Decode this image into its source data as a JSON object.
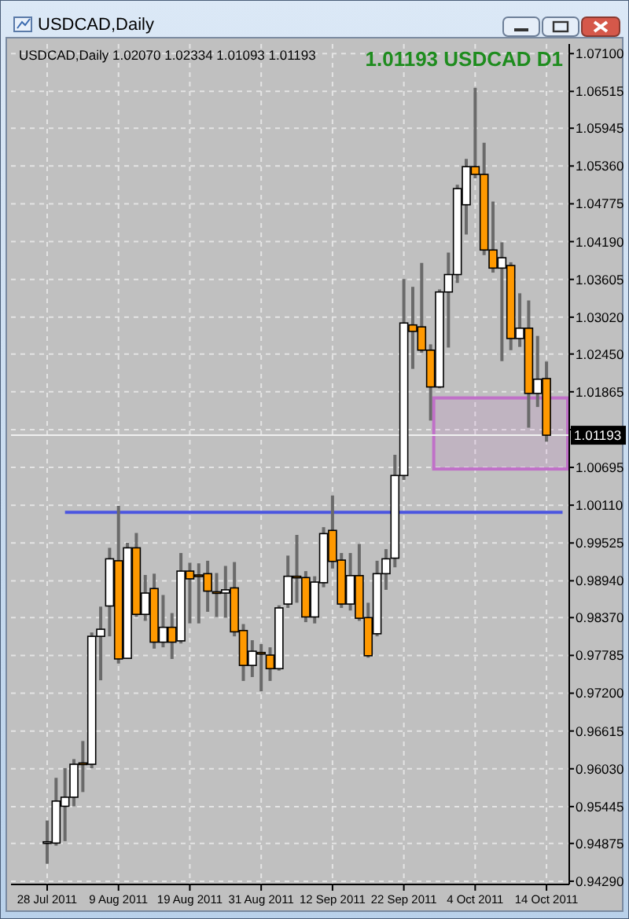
{
  "chart_data": {
    "type": "candlestick",
    "title": "USDCAD,Daily",
    "annotations": [
      "USDCAD,Daily 1.02070 1.02334 1.01093 1.01193",
      "1.01193 USDCAD D1"
    ],
    "categories": [
      "28 Jul 2011",
      null,
      null,
      null,
      null,
      null,
      null,
      null,
      "9 Aug 2011",
      null,
      null,
      null,
      null,
      null,
      null,
      null,
      "19 Aug 2011",
      null,
      null,
      null,
      null,
      null,
      null,
      null,
      "31 Aug 2011",
      null,
      null,
      null,
      null,
      null,
      null,
      null,
      "12 Sep 2011",
      null,
      null,
      null,
      null,
      null,
      null,
      null,
      "22 Sep 2011",
      null,
      null,
      null,
      null,
      null,
      null,
      null,
      "4 Oct 2011",
      null,
      null,
      null,
      null,
      null,
      null,
      null,
      "14 Oct 2011"
    ],
    "ohlc": [
      [
        0.9489,
        0.9523,
        0.9456,
        0.949
      ],
      [
        0.9488,
        0.9589,
        0.9484,
        0.9553
      ],
      [
        0.9545,
        0.9604,
        0.9491,
        0.9559
      ],
      [
        0.9559,
        0.9618,
        0.9545,
        0.961
      ],
      [
        0.9612,
        0.9646,
        0.9567,
        0.9611
      ],
      [
        0.961,
        0.9814,
        0.9604,
        0.9808
      ],
      [
        0.9808,
        0.9854,
        0.974,
        0.9819
      ],
      [
        0.9855,
        0.9945,
        0.9808,
        0.9928
      ],
      [
        0.9925,
        1.001,
        0.9766,
        0.9773
      ],
      [
        0.9774,
        0.9953,
        0.9773,
        0.9945
      ],
      [
        0.9945,
        0.9968,
        0.9838,
        0.9842
      ],
      [
        0.9842,
        0.9903,
        0.9832,
        0.9875
      ],
      [
        0.9882,
        0.9905,
        0.9789,
        0.9799
      ],
      [
        0.9799,
        0.9872,
        0.9791,
        0.9822
      ],
      [
        0.9822,
        0.9844,
        0.9773,
        0.9799
      ],
      [
        0.9801,
        0.9937,
        0.9797,
        0.9909
      ],
      [
        0.9909,
        0.9922,
        0.9828,
        0.9897
      ],
      [
        0.9903,
        0.9921,
        0.9828,
        0.9902
      ],
      [
        0.9905,
        0.9925,
        0.9846,
        0.9878
      ],
      [
        0.9877,
        0.9906,
        0.9838,
        0.9875
      ],
      [
        0.9875,
        0.9917,
        0.9837,
        0.988
      ],
      [
        0.9883,
        0.9923,
        0.9808,
        0.9815
      ],
      [
        0.9817,
        0.9827,
        0.9739,
        0.9763
      ],
      [
        0.9763,
        0.9802,
        0.9745,
        0.9785
      ],
      [
        0.9783,
        0.9796,
        0.9723,
        0.9781
      ],
      [
        0.9779,
        0.9791,
        0.9739,
        0.9758
      ],
      [
        0.9758,
        0.9856,
        0.9755,
        0.9852
      ],
      [
        0.9858,
        0.9933,
        0.9852,
        0.9901
      ],
      [
        0.9901,
        0.9965,
        0.986,
        0.9899
      ],
      [
        0.9899,
        0.9909,
        0.983,
        0.9838
      ],
      [
        0.9838,
        0.9901,
        0.9828,
        0.9892
      ],
      [
        0.9891,
        0.9977,
        0.9884,
        0.9967
      ],
      [
        0.9972,
        1.0026,
        0.9913,
        0.9924
      ],
      [
        0.9926,
        0.9937,
        0.9852,
        0.9858
      ],
      [
        0.9858,
        0.9937,
        0.9848,
        0.9902
      ],
      [
        0.9902,
        0.9951,
        0.9832,
        0.9836
      ],
      [
        0.9837,
        0.986,
        0.9775,
        0.9778
      ],
      [
        0.9812,
        0.9925,
        0.9808,
        0.9905
      ],
      [
        0.9905,
        0.9943,
        0.988,
        0.9928
      ],
      [
        0.9929,
        1.0089,
        0.9915,
        1.0057
      ],
      [
        1.0057,
        1.0361,
        1.005,
        1.0293
      ],
      [
        1.029,
        1.0349,
        1.0222,
        1.028
      ],
      [
        1.0287,
        1.0386,
        1.0247,
        1.0251
      ],
      [
        1.0251,
        1.026,
        1.0142,
        1.0194
      ],
      [
        1.0194,
        1.0345,
        1.0192,
        1.0341
      ],
      [
        1.0341,
        1.0402,
        1.0255,
        1.0368
      ],
      [
        1.0368,
        1.0507,
        1.0355,
        1.0501
      ],
      [
        1.0476,
        1.0547,
        1.043,
        1.0535
      ],
      [
        1.0535,
        1.0657,
        1.0517,
        1.0523
      ],
      [
        1.0523,
        1.0572,
        1.0398,
        1.0406
      ],
      [
        1.0406,
        1.0481,
        1.0371,
        1.0378
      ],
      [
        1.0378,
        1.0418,
        1.0234,
        1.0394
      ],
      [
        1.0382,
        1.0387,
        1.0251,
        1.0269
      ],
      [
        1.0269,
        1.0339,
        1.0256,
        1.0285
      ],
      [
        1.0285,
        1.0328,
        1.0131,
        1.0184
      ],
      [
        1.0184,
        1.0273,
        1.0163,
        1.0206
      ],
      [
        1.0207,
        1.02334,
        1.01093,
        1.01193
      ]
    ],
    "colors": [
      "#ffffff",
      "#ffffff",
      "#ffffff",
      "#ffffff",
      "#ff9900",
      "#ffffff",
      "#ffffff",
      "#ffffff",
      "#ff9900",
      "#ffffff",
      "#ff9900",
      "#ffffff",
      "#ff9900",
      "#ffffff",
      "#ff9900",
      "#ffffff",
      "#ff9900",
      "#ff9900",
      "#ff9900",
      "#ff9900",
      "#ffffff",
      "#ff9900",
      "#ff9900",
      "#ffffff",
      "#ff9900",
      "#ff9900",
      "#ffffff",
      "#ffffff",
      "#ff9900",
      "#ff9900",
      "#ffffff",
      "#ffffff",
      "#ff9900",
      "#ff9900",
      "#ffffff",
      "#ff9900",
      "#ff9900",
      "#ffffff",
      "#ffffff",
      "#ffffff",
      "#ffffff",
      "#ff9900",
      "#ff9900",
      "#ff9900",
      "#ffffff",
      "#ffffff",
      "#ffffff",
      "#ffffff",
      "#ff9900",
      "#ff9900",
      "#ff9900",
      "#ffffff",
      "#ff9900",
      "#ffffff",
      "#ff9900",
      "#ffffff",
      "#ff9900"
    ],
    "ylim": [
      0.9424,
      1.072
    ],
    "yticks": [
      {
        "value": 0.9429,
        "label": "0.94290"
      },
      {
        "value": 0.94875,
        "label": "0.94875"
      },
      {
        "value": 0.95445,
        "label": "0.95445"
      },
      {
        "value": 0.9603,
        "label": "0.96030"
      },
      {
        "value": 0.96615,
        "label": "0.96615"
      },
      {
        "value": 0.972,
        "label": "0.97200"
      },
      {
        "value": 0.97785,
        "label": "0.97785"
      },
      {
        "value": 0.9837,
        "label": "0.98370"
      },
      {
        "value": 0.9894,
        "label": "0.98940"
      },
      {
        "value": 0.99525,
        "label": "0.99525"
      },
      {
        "value": 1.0011,
        "label": "1.00110"
      },
      {
        "value": 1.00695,
        "label": "1.00695"
      },
      {
        "value": 1.0128,
        "label": null
      },
      {
        "value": 1.01865,
        "label": "1.01865"
      },
      {
        "value": 1.0245,
        "label": "1.02450"
      },
      {
        "value": 1.0302,
        "label": "1.03020"
      },
      {
        "value": 1.03605,
        "label": "1.03605"
      },
      {
        "value": 1.0419,
        "label": "1.04190"
      },
      {
        "value": 1.04775,
        "label": "1.04775"
      },
      {
        "value": 1.0536,
        "label": "1.05360"
      },
      {
        "value": 1.05945,
        "label": "1.05945"
      },
      {
        "value": 1.06515,
        "label": "1.06515"
      },
      {
        "value": 1.071,
        "label": "1.07100"
      }
    ],
    "grid": true,
    "ref_lines": [
      {
        "axis": "y",
        "value": 1.0,
        "color": "#4b55e0"
      },
      {
        "axis": "y",
        "value": 1.01193,
        "label": "1.01193",
        "color": "#f0f0f0"
      }
    ],
    "bands": [
      {
        "axis": "y",
        "from": 1.0067,
        "to": 1.0177,
        "color": "#c070c8"
      }
    ]
  }
}
